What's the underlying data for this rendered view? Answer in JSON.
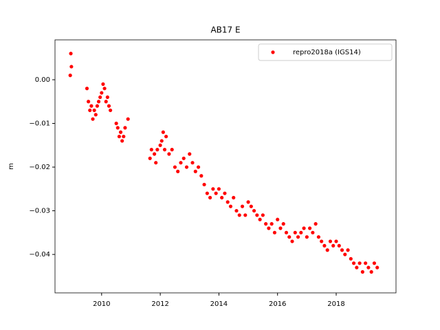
{
  "chart_data": {
    "type": "scatter",
    "title": "AB17 E",
    "ylabel": "m",
    "x": [
      2008.93,
      2008.95,
      2008.97,
      2009.5,
      2009.55,
      2009.6,
      2009.65,
      2009.7,
      2009.75,
      2009.8,
      2009.85,
      2009.9,
      2009.95,
      2010.0,
      2010.05,
      2010.1,
      2010.15,
      2010.2,
      2010.25,
      2010.3,
      2010.5,
      2010.55,
      2010.6,
      2010.65,
      2010.7,
      2010.75,
      2010.8,
      2010.9,
      2011.65,
      2011.7,
      2011.8,
      2011.85,
      2011.9,
      2012.0,
      2012.05,
      2012.1,
      2012.15,
      2012.2,
      2012.3,
      2012.4,
      2012.5,
      2012.6,
      2012.7,
      2012.8,
      2012.9,
      2013.0,
      2013.1,
      2013.2,
      2013.3,
      2013.4,
      2013.5,
      2013.6,
      2013.7,
      2013.8,
      2013.9,
      2014.0,
      2014.1,
      2014.2,
      2014.3,
      2014.4,
      2014.5,
      2014.6,
      2014.7,
      2014.8,
      2014.9,
      2015.0,
      2015.1,
      2015.2,
      2015.3,
      2015.4,
      2015.5,
      2015.6,
      2015.7,
      2015.8,
      2015.9,
      2016.0,
      2016.1,
      2016.2,
      2016.3,
      2016.4,
      2016.5,
      2016.6,
      2016.7,
      2016.8,
      2016.9,
      2017.0,
      2017.1,
      2017.2,
      2017.3,
      2017.4,
      2017.5,
      2017.6,
      2017.7,
      2017.8,
      2017.9,
      2018.0,
      2018.1,
      2018.2,
      2018.3,
      2018.4,
      2018.5,
      2018.6,
      2018.7,
      2018.8,
      2018.9,
      2019.0,
      2019.1,
      2019.2,
      2019.3,
      2019.4
    ],
    "series": [
      {
        "name": "repro2018a (IGS14)",
        "color": "#ff0000",
        "values": [
          0.001,
          0.006,
          0.003,
          -0.002,
          -0.005,
          -0.007,
          -0.006,
          -0.009,
          -0.007,
          -0.008,
          -0.006,
          -0.005,
          -0.004,
          -0.003,
          -0.001,
          -0.002,
          -0.005,
          -0.004,
          -0.006,
          -0.007,
          -0.01,
          -0.011,
          -0.013,
          -0.012,
          -0.014,
          -0.013,
          -0.011,
          -0.009,
          -0.018,
          -0.016,
          -0.017,
          -0.019,
          -0.016,
          -0.015,
          -0.014,
          -0.012,
          -0.016,
          -0.013,
          -0.017,
          -0.016,
          -0.02,
          -0.021,
          -0.019,
          -0.018,
          -0.02,
          -0.017,
          -0.019,
          -0.021,
          -0.02,
          -0.022,
          -0.024,
          -0.026,
          -0.027,
          -0.025,
          -0.026,
          -0.025,
          -0.027,
          -0.026,
          -0.028,
          -0.029,
          -0.027,
          -0.03,
          -0.031,
          -0.029,
          -0.031,
          -0.028,
          -0.029,
          -0.03,
          -0.031,
          -0.032,
          -0.031,
          -0.033,
          -0.034,
          -0.033,
          -0.035,
          -0.032,
          -0.034,
          -0.033,
          -0.035,
          -0.036,
          -0.037,
          -0.035,
          -0.036,
          -0.035,
          -0.034,
          -0.036,
          -0.034,
          -0.035,
          -0.033,
          -0.036,
          -0.037,
          -0.038,
          -0.039,
          -0.037,
          -0.038,
          -0.037,
          -0.038,
          -0.039,
          -0.04,
          -0.039,
          -0.041,
          -0.042,
          -0.043,
          -0.042,
          -0.044,
          -0.042,
          -0.043,
          -0.044,
          -0.042,
          -0.043
        ]
      }
    ],
    "xlim": [
      2008.41,
      2020.04
    ],
    "ylim": [
      -0.0488,
      0.00913
    ],
    "xticks": [
      2010,
      2012,
      2014,
      2016,
      2018
    ],
    "yticks": [
      {
        "value": 0,
        "label": "0.00"
      },
      {
        "value": -0.01,
        "label": "−0.01"
      },
      {
        "value": -0.02,
        "label": "−0.02"
      },
      {
        "value": -0.03,
        "label": "−0.03"
      },
      {
        "value": -0.04,
        "label": "−0.04"
      }
    ],
    "legend": "upper right",
    "grid": false
  }
}
